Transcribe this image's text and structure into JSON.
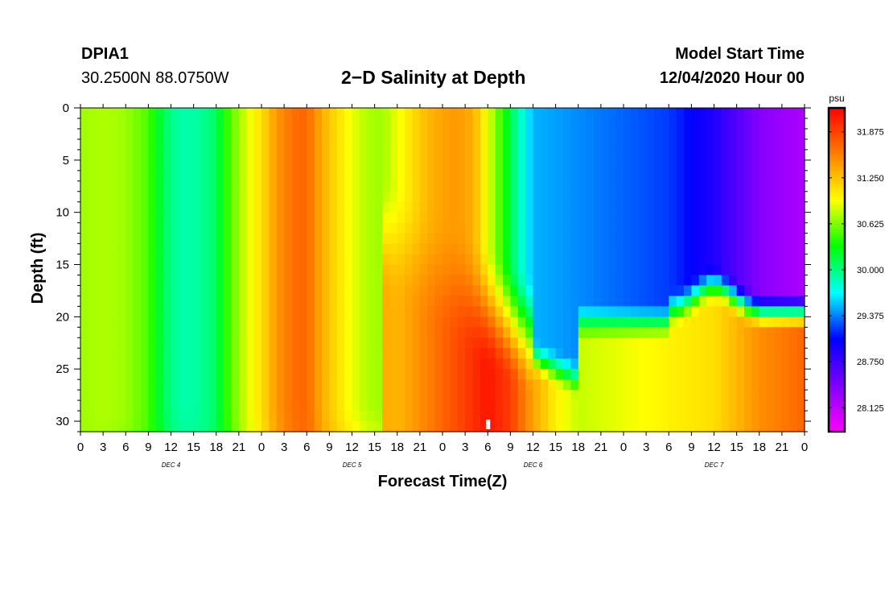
{
  "header": {
    "station_id": "DPIA1",
    "coordinates": "30.2500N 88.0750W",
    "title": "2−D Salinity at Depth",
    "model_start_label": "Model Start Time",
    "model_start_value": "12/04/2020 Hour 00"
  },
  "chart_data": {
    "type": "heatmap",
    "title": "2−D Salinity at Depth",
    "xlabel": "Forecast Time(Z)",
    "ylabel": "Depth (ft)",
    "x_unit": "forecast hour from model start",
    "xlim": [
      0,
      96
    ],
    "ylim": [
      0,
      31
    ],
    "y_inverted": true,
    "x_tick_labels": [
      "0",
      "3",
      "6",
      "9",
      "12",
      "15",
      "18",
      "21",
      "0",
      "3",
      "6",
      "9",
      "12",
      "15",
      "18",
      "21",
      "0",
      "3",
      "6",
      "9",
      "12",
      "15",
      "18",
      "21",
      "0",
      "3",
      "6",
      "9",
      "12",
      "15",
      "18",
      "21",
      "0"
    ],
    "day_labels": [
      "DEC 4",
      "DEC 5",
      "DEC 6",
      "DEC 7"
    ],
    "y_ticks": [
      0,
      5,
      10,
      15,
      20,
      25,
      30
    ],
    "colorbar": {
      "unit": "psu",
      "min": 27.8,
      "max": 32.2,
      "tick_values": [
        28.125,
        28.75,
        29.375,
        30.0,
        30.625,
        31.25,
        31.875
      ],
      "tick_labels": [
        "28.125",
        "28.750",
        "29.375",
        "30.000",
        "30.625",
        "31.250",
        "31.875"
      ],
      "colors": [
        "#ff00ff",
        "#8000ff",
        "#0000ff",
        "#00ffff",
        "#00ff00",
        "#ffff00",
        "#ff8000",
        "#ff0000"
      ]
    },
    "surface_salinity_by_hour": [
      [
        0,
        30.7
      ],
      [
        3,
        30.75
      ],
      [
        6,
        30.7
      ],
      [
        9,
        30.5
      ],
      [
        11,
        30.1
      ],
      [
        13,
        29.9
      ],
      [
        15,
        29.9
      ],
      [
        17,
        30.0
      ],
      [
        18,
        30.1
      ],
      [
        20,
        30.55
      ],
      [
        22,
        30.85
      ],
      [
        24,
        31.1
      ],
      [
        26,
        31.45
      ],
      [
        28,
        31.65
      ],
      [
        30,
        31.7
      ],
      [
        32,
        31.35
      ],
      [
        34,
        31.1
      ],
      [
        36,
        30.9
      ],
      [
        38,
        30.75
      ],
      [
        40,
        30.7
      ],
      [
        42,
        30.9
      ],
      [
        44,
        31.1
      ],
      [
        46,
        31.3
      ],
      [
        48,
        31.4
      ],
      [
        50,
        31.45
      ],
      [
        52,
        31.35
      ],
      [
        54,
        30.9
      ],
      [
        56,
        30.4
      ],
      [
        58,
        29.9
      ],
      [
        60,
        29.5
      ],
      [
        66,
        29.4
      ],
      [
        72,
        29.3
      ],
      [
        78,
        29.2
      ],
      [
        84,
        28.9
      ],
      [
        90,
        28.4
      ],
      [
        96,
        28.2
      ]
    ],
    "bottom_salinity_by_hour": [
      [
        0,
        30.7
      ],
      [
        18,
        30.1
      ],
      [
        30,
        31.7
      ],
      [
        42,
        31.3
      ],
      [
        48,
        31.7
      ],
      [
        54,
        32.1
      ],
      [
        57,
        31.9
      ],
      [
        60,
        31.4
      ],
      [
        63,
        31.0
      ],
      [
        66,
        30.8
      ],
      [
        72,
        30.9
      ],
      [
        78,
        31.0
      ],
      [
        84,
        31.1
      ],
      [
        90,
        31.5
      ],
      [
        96,
        31.7
      ]
    ],
    "annotations": [
      {
        "x": 54,
        "y": 30.3,
        "text": "",
        "note_value": 32.2
      }
    ]
  }
}
